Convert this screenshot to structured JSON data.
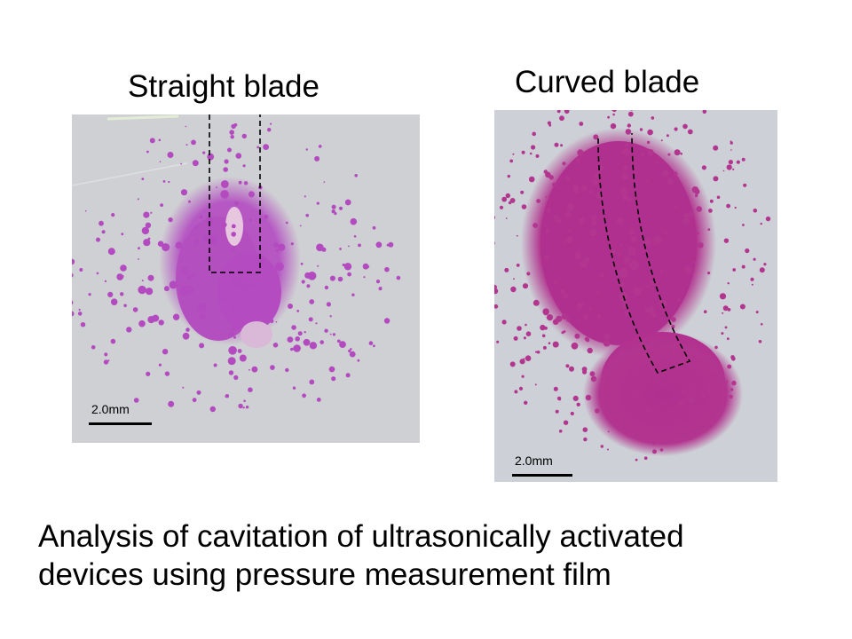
{
  "panels": {
    "left": {
      "title": "Straight blade",
      "scale_label": "2.0mm"
    },
    "right": {
      "title": "Curved blade",
      "scale_label": "2.0mm"
    }
  },
  "caption": {
    "line1": "Analysis of cavitation of ultrasonically activated",
    "line2": "devices using pressure measurement film"
  },
  "colors": {
    "film_background": "#cfd0d3",
    "stain": "#b44ac0",
    "stain_dense": "#b0308f",
    "outline": "#000000"
  }
}
